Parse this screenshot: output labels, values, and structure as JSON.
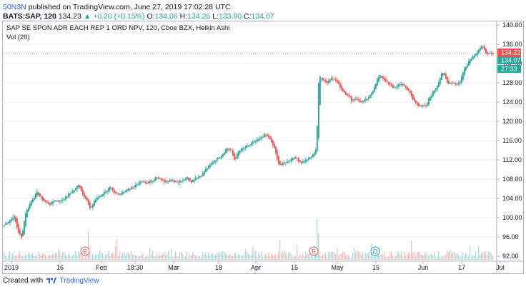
{
  "header": {
    "user": "50N3N",
    "published_text": "published on TradingView.com, June 27, 2019 17:02:28 UTC",
    "symbol": "BATS:SAP, 120",
    "last": "134.23",
    "change_arrow": "▲",
    "change": "+0.20 (+0.15%)",
    "o_label": "O:",
    "o": "134.06",
    "h_label": "H:",
    "h": "134.26",
    "l_label": "L:",
    "l": "133.90",
    "c_label": "C:",
    "c": "134.07"
  },
  "legend": {
    "series": "SAP SE SPON ADR EACH REP 1 ORD NPV, 120, Cboe BZX, Heikin Ashi",
    "volume": "Vol (20)"
  },
  "footer": {
    "created_with": "Created with",
    "brand": "TradingView"
  },
  "colors": {
    "up": "#26a69a",
    "down": "#ef5350",
    "grid": "#eef0f3",
    "axis": "#b2b5be",
    "lastline": "#26a69a",
    "badge_green": "#26a69a",
    "badge_red": "#ef5350"
  },
  "chart_data": {
    "type": "candlestick",
    "style": "Heikin Ashi",
    "interval": "120",
    "ylim": [
      92,
      140
    ],
    "y_ticks": [
      92,
      96,
      100,
      104,
      108,
      112,
      116,
      120,
      124,
      128,
      132,
      136,
      140
    ],
    "y_tick_labels": [
      "92.00",
      "96.00",
      "100.00",
      "104.00",
      "108.00",
      "112.00",
      "116.00",
      "120.00",
      "124.00",
      "128.00",
      "132.00",
      "136.00",
      "140.00"
    ],
    "x_ticks": [
      "2019",
      "16",
      "Feb",
      "18:30",
      "Mar",
      "18",
      "Apr",
      "15",
      "May",
      "15",
      "Jun",
      "17",
      "Jul"
    ],
    "price_badges": [
      {
        "label": "134.22",
        "value": 134.22,
        "color": "red"
      },
      {
        "label": "134.07",
        "value": 134.07,
        "color": "green"
      },
      {
        "label": "27:33",
        "color": "green"
      }
    ],
    "last_price": 134.07,
    "event_markers": [
      {
        "label": "E",
        "type": "earnings"
      },
      {
        "label": "E",
        "type": "earnings"
      },
      {
        "label": "D",
        "type": "dividend"
      }
    ],
    "close_path": [
      [
        0,
        98.5
      ],
      [
        8,
        99.5
      ],
      [
        14,
        100.2
      ],
      [
        20,
        97.0
      ],
      [
        24,
        95.7
      ],
      [
        30,
        101.0
      ],
      [
        38,
        103.5
      ],
      [
        46,
        105.2
      ],
      [
        52,
        104.0
      ],
      [
        58,
        103.2
      ],
      [
        64,
        102.8
      ],
      [
        70,
        103.6
      ],
      [
        78,
        103.4
      ],
      [
        86,
        104.2
      ],
      [
        94,
        105.3
      ],
      [
        100,
        106.0
      ],
      [
        104,
        107.0
      ],
      [
        108,
        105.5
      ],
      [
        112,
        104.5
      ],
      [
        116,
        103.5
      ],
      [
        120,
        101.7
      ],
      [
        126,
        103.5
      ],
      [
        134,
        104.5
      ],
      [
        142,
        105.5
      ],
      [
        148,
        106.2
      ],
      [
        154,
        105.0
      ],
      [
        160,
        104.8
      ],
      [
        168,
        105.5
      ],
      [
        176,
        106.0
      ],
      [
        184,
        106.8
      ],
      [
        192,
        107.4
      ],
      [
        200,
        107.2
      ],
      [
        206,
        107.6
      ],
      [
        212,
        108.3
      ],
      [
        218,
        108.0
      ],
      [
        224,
        107.6
      ],
      [
        232,
        107.8
      ],
      [
        240,
        107.4
      ],
      [
        248,
        107.8
      ],
      [
        256,
        108.3
      ],
      [
        262,
        107.5
      ],
      [
        268,
        108.3
      ],
      [
        276,
        108.8
      ],
      [
        282,
        110.0
      ],
      [
        288,
        110.9
      ],
      [
        294,
        111.9
      ],
      [
        300,
        112.5
      ],
      [
        306,
        113.3
      ],
      [
        312,
        114.5
      ],
      [
        318,
        113.8
      ],
      [
        322,
        112.0
      ],
      [
        328,
        113.7
      ],
      [
        334,
        114.3
      ],
      [
        340,
        114.8
      ],
      [
        346,
        115.4
      ],
      [
        352,
        115.8
      ],
      [
        358,
        116.4
      ],
      [
        364,
        117.3
      ],
      [
        370,
        116.8
      ],
      [
        374,
        115.5
      ],
      [
        378,
        114.5
      ],
      [
        382,
        112.0
      ],
      [
        386,
        111.0
      ],
      [
        392,
        111.3
      ],
      [
        398,
        111.7
      ],
      [
        404,
        112.5
      ],
      [
        410,
        112.2
      ],
      [
        416,
        111.4
      ],
      [
        420,
        111.8
      ],
      [
        426,
        112.2
      ],
      [
        432,
        113.0
      ],
      [
        436,
        114.2
      ],
      [
        438,
        119.0
      ],
      [
        439,
        126.0
      ],
      [
        441,
        129.5
      ],
      [
        446,
        128.7
      ],
      [
        452,
        128.0
      ],
      [
        458,
        129.2
      ],
      [
        464,
        128.4
      ],
      [
        468,
        127.6
      ],
      [
        474,
        126.3
      ],
      [
        480,
        125.5
      ],
      [
        486,
        124.4
      ],
      [
        492,
        124.8
      ],
      [
        498,
        124.0
      ],
      [
        504,
        124.3
      ],
      [
        510,
        124.8
      ],
      [
        516,
        126.5
      ],
      [
        522,
        128.7
      ],
      [
        526,
        129.4
      ],
      [
        532,
        128.7
      ],
      [
        538,
        127.7
      ],
      [
        544,
        127.0
      ],
      [
        550,
        127.3
      ],
      [
        556,
        127.8
      ],
      [
        562,
        127.0
      ],
      [
        566,
        126.4
      ],
      [
        572,
        124.5
      ],
      [
        578,
        123.5
      ],
      [
        584,
        123.3
      ],
      [
        590,
        123.0
      ],
      [
        594,
        124.6
      ],
      [
        600,
        126.0
      ],
      [
        606,
        127.5
      ],
      [
        612,
        130.0
      ],
      [
        616,
        129.5
      ],
      [
        620,
        128.0
      ],
      [
        628,
        128.0
      ],
      [
        634,
        127.7
      ],
      [
        638,
        128.3
      ],
      [
        644,
        131.0
      ],
      [
        650,
        132.5
      ],
      [
        656,
        133.5
      ],
      [
        662,
        134.5
      ],
      [
        668,
        135.5
      ],
      [
        672,
        135.0
      ],
      [
        676,
        133.7
      ],
      [
        680,
        134.1
      ],
      [
        684,
        134.07
      ]
    ],
    "volume_spikes": [
      {
        "x": 118,
        "height": 0.67
      },
      {
        "x": 158,
        "height": 0.48
      },
      {
        "x": 438,
        "height": 0.95
      },
      {
        "x": 440,
        "height": 0.62
      },
      {
        "x": 386,
        "height": 0.46
      },
      {
        "x": 570,
        "height": 0.45
      }
    ]
  }
}
